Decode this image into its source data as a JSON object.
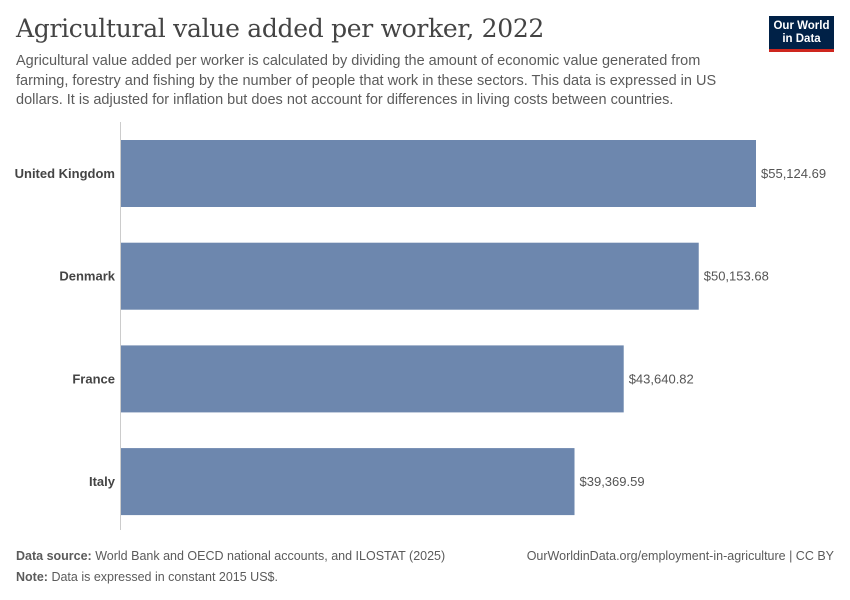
{
  "header": {
    "title": "Agricultural value added per worker, 2022",
    "subtitle": "Agricultural value added per worker is calculated by dividing the amount of economic value generated from farming, forestry and fishing by the number of people that work in these sectors. This data is expressed in US dollars. It is adjusted for inflation but does not account for differences in living costs between countries."
  },
  "logo": {
    "line1": "Our World",
    "line2": "in Data"
  },
  "footer": {
    "source_label": "Data source:",
    "source_text": "World Bank and OECD national accounts, and ILOSTAT (2025)",
    "note_label": "Note:",
    "note_text": "Data is expressed in constant 2015 US$.",
    "url": "OurWorldinData.org/employment-in-agriculture | CC BY"
  },
  "colors": {
    "bar": "#6d87ae",
    "axis": "#cccccc",
    "label": "#444444",
    "value": "#555555"
  },
  "chart_data": {
    "type": "bar",
    "orientation": "horizontal",
    "categories": [
      "United Kingdom",
      "Denmark",
      "France",
      "Italy"
    ],
    "values": [
      55124.69,
      50153.68,
      43640.82,
      39369.59
    ],
    "value_labels": [
      "$55,124.69",
      "$50,153.68",
      "$43,640.82",
      "$39,369.59"
    ],
    "xlim": [
      0,
      55124.69
    ],
    "grid": false
  }
}
